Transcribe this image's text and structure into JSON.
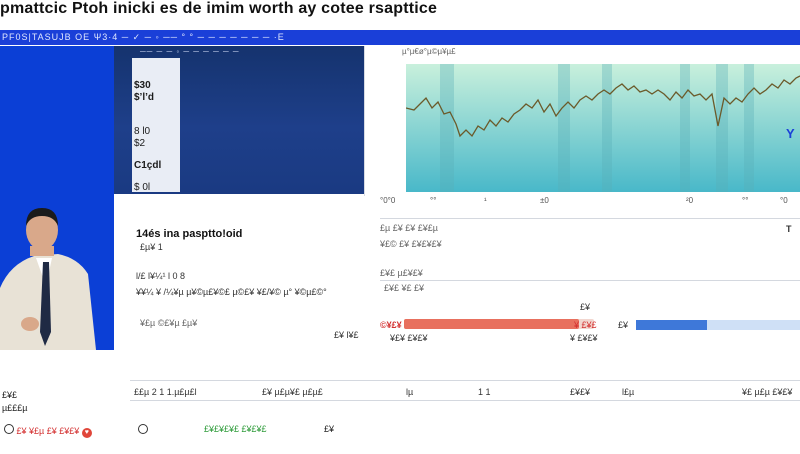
{
  "title": "pmattcic Ptoh inicki es de imim worth ay cotee rsapttice",
  "toolbar": {
    "text": "PF0S|TASUJB OE Ψ3·4 ─ ✓ ─ ◦ ── ° ° ─ ─ ─ ─ ─ ─ ─ ·E"
  },
  "left_ticks": [
    "$30",
    "$’l’d",
    "8 l0",
    "$2",
    "C1çdl",
    "$ 0l"
  ],
  "chart": {
    "title": "µ°µ€ø°µ©µ¥µ£",
    "xticks": [
      "°0°0",
      "°°",
      "¹",
      "±0",
      "²0",
      "°°",
      "°0"
    ],
    "right_label": "Y",
    "right_small": "T"
  },
  "middle": {
    "heading": "14és ina pasptto!oid",
    "sub1": "£µ¥ 1",
    "sub2": "l/£ l¥¼¹ l 0 8",
    "sub3": "¥¥¼ ¥ /¼¥µ µ¥©µ£¥©£ µ©£¥ ¥£/¥© µ° ¥©µ£©°",
    "sub4": "¥£µ ©£¥µ £µ¥",
    "sub5": "£¥ l¥£",
    "right1": "£µ £¥ £¥ £¥£µ",
    "right2": "¥£© £¥ £¥£¥£¥",
    "right3": "£¥£ µ£¥£¥"
  },
  "progress": {
    "label_top": "£¥£ ¥£ £¥",
    "label_mid": "£¥",
    "left_label": "©¥£¥",
    "right_value": "¥ £¥£",
    "bottom_left": "¥£¥ £¥£¥",
    "bottom_right": "¥ £¥£¥",
    "fill_fraction": 0.92,
    "blue_label": "£¥",
    "blue_fill_fraction": 0.43
  },
  "bottom_row": {
    "c1": "££µ 2 1 1.µ£µ£l",
    "c2": "£¥ µ£µ¥£ µ£µ£",
    "c3": "lµ",
    "c4": "1 1",
    "c5": "£¥£¥",
    "c6": "l£µ",
    "c7": "¥£ µ£µ £¥£¥"
  },
  "footer": {
    "left_small": "£¥£",
    "left_small2": "µ£££µ",
    "red_text": "£¥ ¥£µ £¥ £¥£¥",
    "green_text": "£¥£¥£¥£ £¥£¥£",
    "end_text": "£¥"
  },
  "colors": {
    "accent": "#1a3fd8",
    "navy": "#1e3f8a",
    "red": "#e8705e",
    "blue": "#3e78d9"
  }
}
